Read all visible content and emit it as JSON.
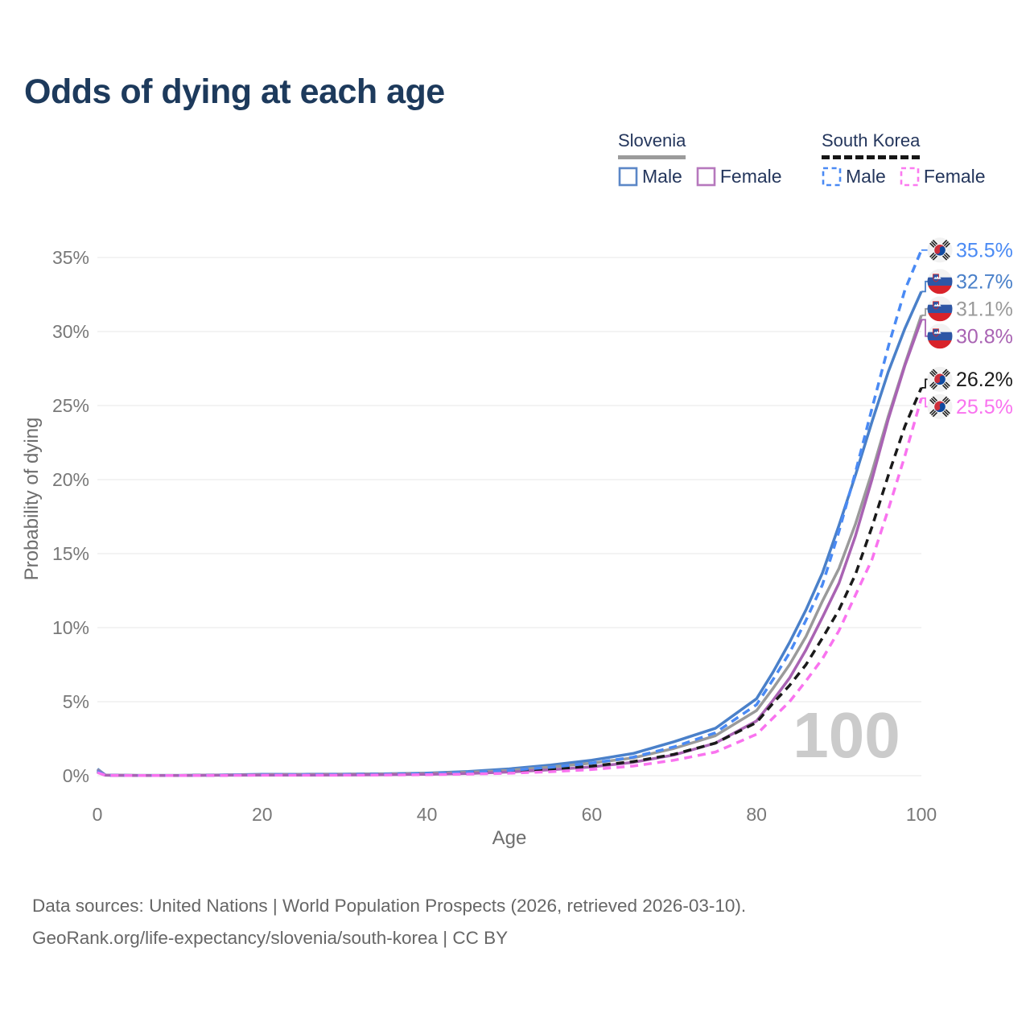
{
  "title": "Odds of dying at each age",
  "watermark": "100",
  "legend": {
    "groups": [
      {
        "name": "Slovenia",
        "line_style": "solid",
        "underline_color": "#9b9b9b",
        "items": [
          {
            "label": "Male",
            "color": "#5b87c7"
          },
          {
            "label": "Female",
            "color": "#b678bd"
          }
        ]
      },
      {
        "name": "South Korea",
        "line_style": "dashed",
        "underline_color": "#161616",
        "items": [
          {
            "label": "Male",
            "color": "#4a8af4"
          },
          {
            "label": "Female",
            "color": "#fb7af0"
          }
        ]
      }
    ]
  },
  "footer": {
    "line1": "Data sources: United Nations | World Population Prospects (2026, retrieved 2026-03-10).",
    "line2": "GeoRank.org/life-expectancy/slovenia/south-korea | CC BY"
  },
  "chart_data": {
    "type": "line",
    "title": "Odds of dying at each age",
    "xlabel": "Age",
    "ylabel": "Probability of dying",
    "xlim": [
      0,
      100
    ],
    "ylim_percent": [
      0,
      35
    ],
    "grid": "horizontal",
    "legend_position": "top-right",
    "x_ticks": [
      {
        "value": 0,
        "label": "0"
      },
      {
        "value": 20,
        "label": "20"
      },
      {
        "value": 40,
        "label": "40"
      },
      {
        "value": 60,
        "label": "60"
      },
      {
        "value": 80,
        "label": "80"
      },
      {
        "value": 100,
        "label": "100"
      }
    ],
    "y_ticks": [
      {
        "value": 0,
        "label": "0%"
      },
      {
        "value": 5,
        "label": "5%"
      },
      {
        "value": 10,
        "label": "10%"
      },
      {
        "value": 15,
        "label": "15%"
      },
      {
        "value": 20,
        "label": "20%"
      },
      {
        "value": 25,
        "label": "25%"
      },
      {
        "value": 30,
        "label": "30%"
      },
      {
        "value": 35,
        "label": "35%"
      }
    ],
    "x": [
      0,
      1,
      5,
      10,
      15,
      20,
      25,
      30,
      35,
      40,
      45,
      50,
      55,
      60,
      65,
      70,
      75,
      80,
      82,
      84,
      86,
      88,
      90,
      92,
      94,
      96,
      98,
      100
    ],
    "series": [
      {
        "name": "Slovenia Male",
        "country": "Slovenia",
        "sex": "Male",
        "line_style": "solid",
        "color": "#4a80c9",
        "end_value": 32.7,
        "end_label": "32.7%",
        "values_percent": [
          0.45,
          0.04,
          0.02,
          0.02,
          0.05,
          0.09,
          0.1,
          0.11,
          0.13,
          0.18,
          0.28,
          0.46,
          0.72,
          1.05,
          1.5,
          2.3,
          3.2,
          5.2,
          7.0,
          9.0,
          11.2,
          13.7,
          16.9,
          20.3,
          23.9,
          27.3,
          30.2,
          32.7
        ]
      },
      {
        "name": "Slovenia (both sexes)",
        "country": "Slovenia",
        "sex": "Both",
        "line_style": "solid",
        "color": "#9a9a9a",
        "end_value": 31.1,
        "end_label": "31.1%",
        "values_percent": [
          0.4,
          0.04,
          0.02,
          0.02,
          0.04,
          0.07,
          0.08,
          0.09,
          0.11,
          0.15,
          0.23,
          0.37,
          0.58,
          0.85,
          1.2,
          1.85,
          2.7,
          4.4,
          5.9,
          7.5,
          9.4,
          11.8,
          14.0,
          17.0,
          20.5,
          24.3,
          27.8,
          31.1
        ]
      },
      {
        "name": "Slovenia Female",
        "country": "Slovenia",
        "sex": "Female",
        "line_style": "solid",
        "color": "#a963b3",
        "end_value": 30.8,
        "end_label": "30.8%",
        "values_percent": [
          0.35,
          0.03,
          0.01,
          0.01,
          0.03,
          0.04,
          0.04,
          0.05,
          0.07,
          0.1,
          0.15,
          0.25,
          0.4,
          0.6,
          0.9,
          1.4,
          2.2,
          3.7,
          5.1,
          6.6,
          8.5,
          10.7,
          13.0,
          16.2,
          20.0,
          24.1,
          27.7,
          30.8
        ]
      },
      {
        "name": "South Korea (both sexes)",
        "country": "South Korea",
        "sex": "Both",
        "line_style": "dashed",
        "color": "#1a1a1a",
        "end_value": 26.2,
        "end_label": "26.2%",
        "values_percent": [
          0.25,
          0.02,
          0.01,
          0.01,
          0.03,
          0.05,
          0.06,
          0.07,
          0.09,
          0.12,
          0.18,
          0.28,
          0.44,
          0.65,
          0.95,
          1.45,
          2.2,
          3.6,
          4.9,
          6.1,
          7.5,
          9.3,
          11.2,
          13.6,
          16.8,
          20.3,
          23.6,
          26.2
        ]
      },
      {
        "name": "South Korea Male",
        "country": "South Korea",
        "sex": "Male",
        "line_style": "dashed",
        "color": "#4a8af4",
        "end_value": 35.5,
        "end_label": "35.5%",
        "values_percent": [
          0.3,
          0.03,
          0.01,
          0.01,
          0.03,
          0.06,
          0.07,
          0.08,
          0.1,
          0.14,
          0.22,
          0.36,
          0.57,
          0.85,
          1.25,
          1.95,
          2.9,
          4.8,
          6.5,
          8.3,
          10.5,
          12.9,
          16.5,
          20.5,
          24.8,
          29.0,
          32.8,
          35.5
        ]
      },
      {
        "name": "South Korea Female",
        "country": "South Korea",
        "sex": "Female",
        "line_style": "dashed",
        "color": "#f973ef",
        "end_value": 25.5,
        "end_label": "25.5%",
        "values_percent": [
          0.22,
          0.02,
          0.01,
          0.01,
          0.02,
          0.03,
          0.03,
          0.04,
          0.05,
          0.07,
          0.11,
          0.17,
          0.27,
          0.42,
          0.65,
          1.05,
          1.6,
          2.8,
          3.9,
          5.0,
          6.4,
          7.9,
          9.8,
          12.2,
          14.6,
          18.0,
          21.6,
          25.5
        ]
      }
    ]
  }
}
